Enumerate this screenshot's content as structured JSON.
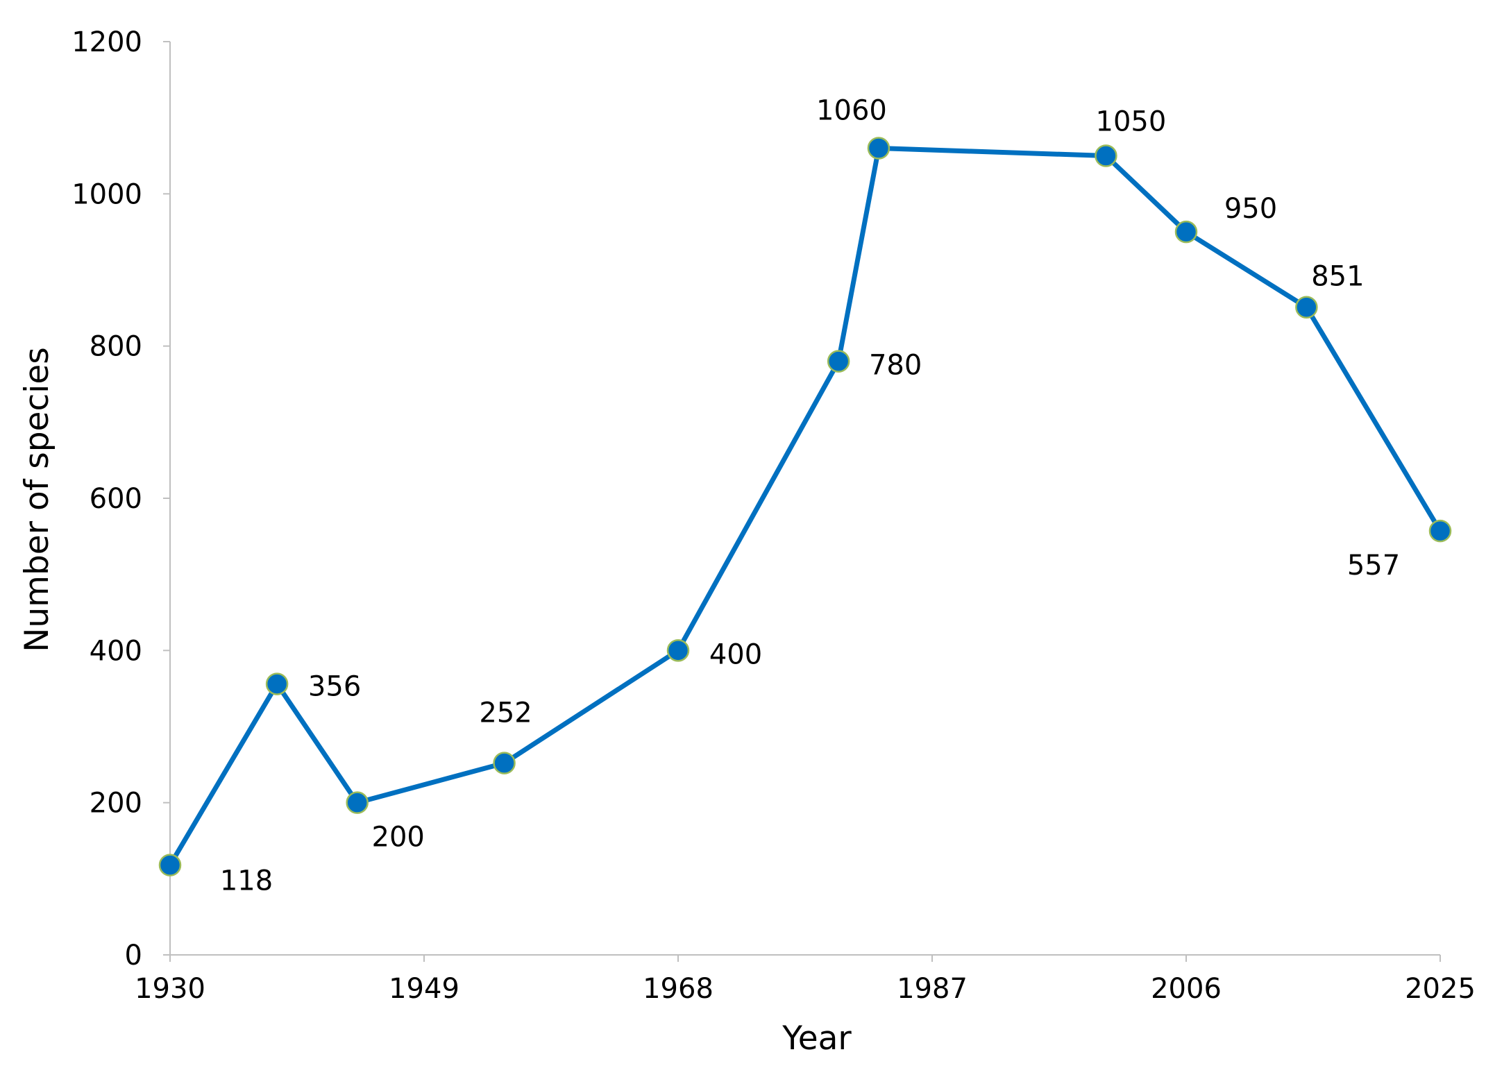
{
  "chart_data": {
    "type": "line",
    "title": "",
    "xlabel": "Year",
    "ylabel": "Number of species",
    "xlim": [
      1930,
      2025
    ],
    "ylim": [
      0,
      1200
    ],
    "x_ticks": [
      "1930",
      "1949",
      "1968",
      "1987",
      "2006",
      "2025"
    ],
    "y_ticks": [
      "0",
      "200",
      "400",
      "600",
      "800",
      "1000",
      "1200"
    ],
    "grid": false,
    "legend": "none",
    "series": [
      {
        "color": "#0070C0",
        "marker_edge": "#9bbb59",
        "x": [
          1930,
          1938,
          1944,
          1955,
          1968,
          1980,
          1983,
          2000,
          2006,
          2015,
          2025
        ],
        "y": [
          118,
          356,
          200,
          252,
          400,
          780,
          1060,
          1050,
          950,
          851,
          557
        ],
        "labels": [
          "118",
          "356",
          "200",
          "252",
          "400",
          "780",
          "1060",
          "1050",
          "950",
          "851",
          "557"
        ]
      }
    ]
  }
}
